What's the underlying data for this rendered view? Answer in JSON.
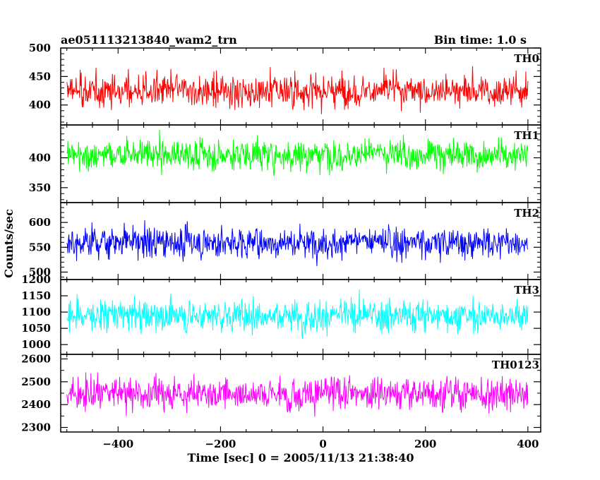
{
  "header": {
    "title": "ae051113213840_wam2_trn",
    "bin_time": "Bin time: 1.0 s"
  },
  "chart_data": {
    "type": "line",
    "title": "ae051113213840_wam2_trn",
    "xlabel": "Time [sec] 0 = 2005/11/13 21:38:40",
    "ylabel": "Counts/sec",
    "xlim": [
      -512,
      425
    ],
    "x_range": [
      -500,
      400
    ],
    "bin_time_s": 1.0,
    "xticks": [
      -400,
      -200,
      0,
      200,
      400
    ],
    "grid": false,
    "panels": [
      {
        "name": "TH0",
        "color": "#ff0000",
        "ylim": [
          365,
          500
        ],
        "yticks": [
          400,
          450,
          500
        ],
        "mean": 425,
        "spread": 22
      },
      {
        "name": "TH1",
        "color": "#00ff00",
        "ylim": [
          325,
          455
        ],
        "yticks": [
          350,
          400
        ],
        "mean": 405,
        "spread": 20
      },
      {
        "name": "TH2",
        "color": "#0000ff",
        "ylim": [
          485,
          640
        ],
        "yticks": [
          500,
          550,
          600
        ],
        "mean": 560,
        "spread": 25
      },
      {
        "name": "TH3",
        "color": "#00ffff",
        "ylim": [
          970,
          1200
        ],
        "yticks": [
          1000,
          1050,
          1100,
          1150,
          1200
        ],
        "mean": 1090,
        "spread": 38
      },
      {
        "name": "TH0123",
        "color": "#ff00ff",
        "ylim": [
          2280,
          2620
        ],
        "yticks": [
          2300,
          2400,
          2500,
          2600
        ],
        "mean": 2450,
        "spread": 55
      }
    ]
  }
}
